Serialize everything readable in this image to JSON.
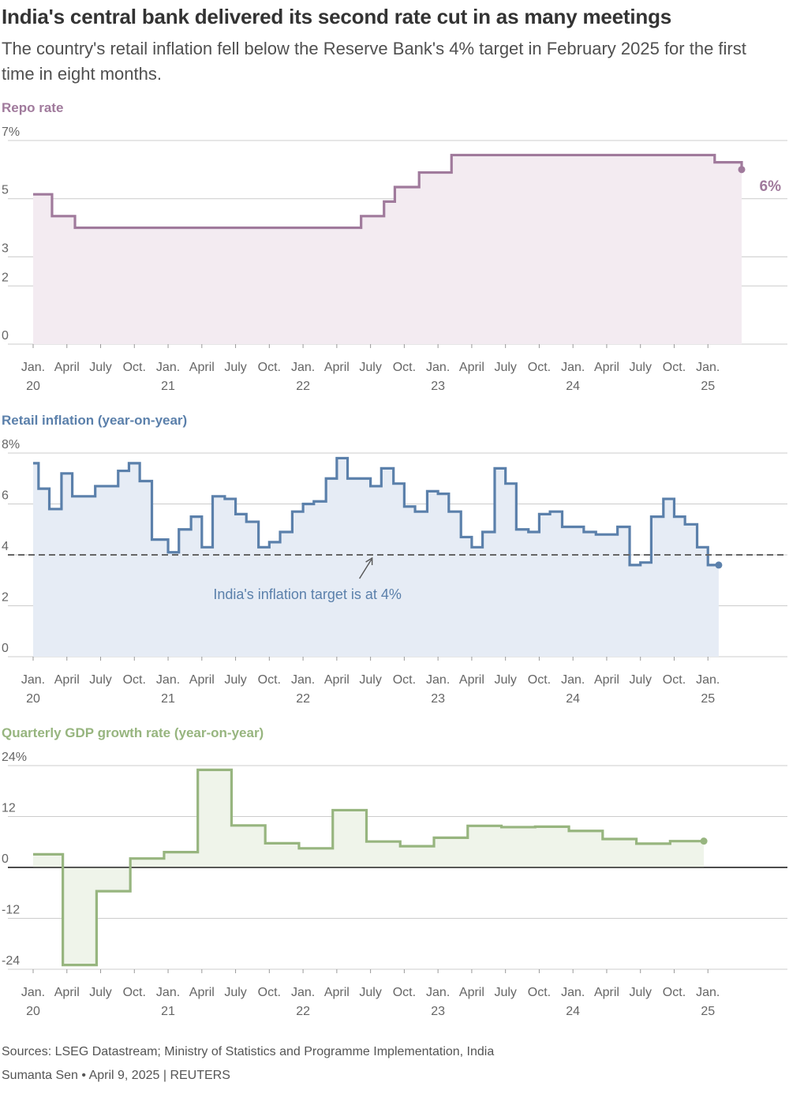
{
  "header": {
    "title": "India's central bank delivered its second rate cut in as many meetings",
    "subtitle": "The country's retail inflation fell below the Reserve Bank's 4% target in February 2025 for the first time in eight months."
  },
  "footer": {
    "sources": "Sources: LSEG Datastream; Ministry of Statistics and Programme Implementation, India",
    "credit": "Sumanta Sen • April 9, 2025 | REUTERS"
  },
  "colors": {
    "repo": "#a07a9c",
    "repo_fill": "#f3ebf1",
    "inflation": "#5b80ab",
    "inflation_fill": "#e6ecf5",
    "gdp": "#97b57f",
    "gdp_fill": "#eff4ea",
    "grid": "#cccccc",
    "axis_text": "#666666",
    "target_line": "#666666"
  },
  "chart_data": [
    {
      "id": "repo",
      "type": "line",
      "step": true,
      "title": "Repo rate",
      "ylim": [
        0,
        7
      ],
      "yticks": [
        0,
        2,
        3,
        5,
        7
      ],
      "ytick_labels": [
        "0",
        "2",
        "3",
        "5",
        "7%"
      ],
      "xlim": [
        2020.0,
        2025.25
      ],
      "x_ticks": [
        {
          "x": 2020.0,
          "label": "Jan.",
          "year": "20"
        },
        {
          "x": 2020.25,
          "label": "April"
        },
        {
          "x": 2020.5,
          "label": "July"
        },
        {
          "x": 2020.75,
          "label": "Oct."
        },
        {
          "x": 2021.0,
          "label": "Jan.",
          "year": "21"
        },
        {
          "x": 2021.25,
          "label": "April"
        },
        {
          "x": 2021.5,
          "label": "July"
        },
        {
          "x": 2021.75,
          "label": "Oct."
        },
        {
          "x": 2022.0,
          "label": "Jan.",
          "year": "22"
        },
        {
          "x": 2022.25,
          "label": "April"
        },
        {
          "x": 2022.5,
          "label": "July"
        },
        {
          "x": 2022.75,
          "label": "Oct."
        },
        {
          "x": 2023.0,
          "label": "Jan.",
          "year": "23"
        },
        {
          "x": 2023.25,
          "label": "April"
        },
        {
          "x": 2023.5,
          "label": "July"
        },
        {
          "x": 2023.75,
          "label": "Oct."
        },
        {
          "x": 2024.0,
          "label": "Jan.",
          "year": "24"
        },
        {
          "x": 2024.25,
          "label": "April"
        },
        {
          "x": 2024.5,
          "label": "July"
        },
        {
          "x": 2024.75,
          "label": "Oct."
        },
        {
          "x": 2025.0,
          "label": "Jan.",
          "year": "25"
        }
      ],
      "x": [
        2020.0,
        2020.14,
        2020.31,
        2022.35,
        2022.43,
        2022.6,
        2022.68,
        2022.86,
        2023.1,
        2025.05,
        2025.25
      ],
      "values": [
        5.15,
        4.4,
        4.0,
        4.0,
        4.4,
        4.9,
        5.4,
        5.9,
        6.5,
        6.25,
        6.0
      ],
      "end_label": "6%"
    },
    {
      "id": "inflation",
      "type": "line",
      "step": true,
      "title": "Retail inflation (year-on-year)",
      "ylim": [
        0,
        8
      ],
      "yticks": [
        0,
        2,
        4,
        6,
        8
      ],
      "ytick_labels": [
        "0",
        "2",
        "4",
        "6",
        "8%"
      ],
      "xlim": [
        2020.0,
        2025.25
      ],
      "target": 4,
      "annotation": "India's inflation target is at 4%",
      "x": [
        2020.0,
        2020.04,
        2020.12,
        2020.21,
        2020.29,
        2020.46,
        2020.63,
        2020.71,
        2020.79,
        2020.88,
        2021.0,
        2021.08,
        2021.17,
        2021.25,
        2021.33,
        2021.42,
        2021.5,
        2021.58,
        2021.67,
        2021.75,
        2021.83,
        2021.92,
        2022.0,
        2022.08,
        2022.17,
        2022.25,
        2022.33,
        2022.42,
        2022.5,
        2022.58,
        2022.67,
        2022.75,
        2022.83,
        2022.92,
        2023.0,
        2023.08,
        2023.17,
        2023.25,
        2023.33,
        2023.42,
        2023.5,
        2023.58,
        2023.67,
        2023.75,
        2023.83,
        2023.92,
        2024.0,
        2024.08,
        2024.17,
        2024.25,
        2024.33,
        2024.42,
        2024.5,
        2024.58,
        2024.67,
        2024.75,
        2024.83,
        2024.92,
        2025.0,
        2025.08
      ],
      "values": [
        7.6,
        6.6,
        5.8,
        7.2,
        6.3,
        6.7,
        7.3,
        7.6,
        6.9,
        4.6,
        4.1,
        5.0,
        5.5,
        4.3,
        6.3,
        6.2,
        5.6,
        5.3,
        4.3,
        4.5,
        4.9,
        5.7,
        6.0,
        6.1,
        7.0,
        7.8,
        7.0,
        7.0,
        6.7,
        7.4,
        6.8,
        5.9,
        5.7,
        6.5,
        6.4,
        5.7,
        4.7,
        4.3,
        4.9,
        7.4,
        6.8,
        5.0,
        4.9,
        5.6,
        5.7,
        5.1,
        5.1,
        4.9,
        4.8,
        4.8,
        5.1,
        3.6,
        3.7,
        5.5,
        6.2,
        5.5,
        5.2,
        4.3,
        3.6,
        3.6
      ]
    },
    {
      "id": "gdp",
      "type": "line",
      "step": true,
      "title": "Quarterly GDP growth rate (year-on-year)",
      "ylim": [
        -24,
        24
      ],
      "yticks": [
        -24,
        -12,
        0,
        12,
        24
      ],
      "ytick_labels": [
        "-24",
        "-12",
        "0",
        "12",
        "24%"
      ],
      "xlim": [
        2020.0,
        2025.25
      ],
      "x": [
        2020.0,
        2020.22,
        2020.47,
        2020.72,
        2020.97,
        2021.22,
        2021.47,
        2021.72,
        2021.97,
        2022.22,
        2022.47,
        2022.72,
        2022.97,
        2023.22,
        2023.47,
        2023.72,
        2023.97,
        2024.22,
        2024.47,
        2024.72,
        2024.97
      ],
      "values": [
        3.1,
        -23.0,
        -5.6,
        2.1,
        3.6,
        23.0,
        9.9,
        5.7,
        4.5,
        13.5,
        6.1,
        5.0,
        7.0,
        9.8,
        9.5,
        9.6,
        8.6,
        6.7,
        5.6,
        6.2,
        6.2
      ]
    }
  ]
}
